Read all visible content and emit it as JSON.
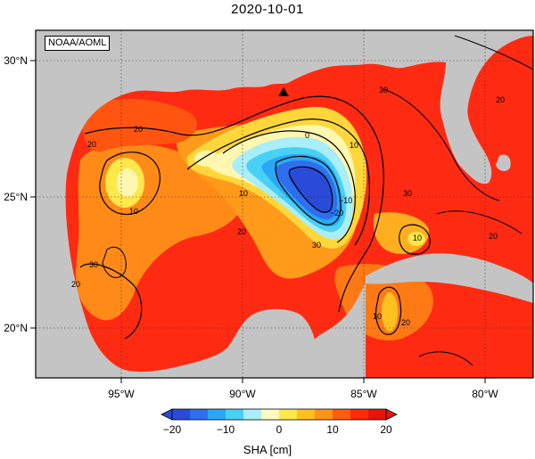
{
  "title": "2020-10-01",
  "credit": "NOAA/AOML",
  "lon_labels": [
    "95°W",
    "90°W",
    "85°W",
    "80°W"
  ],
  "lat_labels": [
    "30°N",
    "25°N",
    "20°N"
  ],
  "colorbar": {
    "ticks": [
      "−20",
      "−10",
      "0",
      "10",
      "20"
    ],
    "label": "SHA [cm]",
    "colors": [
      "#2a4bd7",
      "#2e6ff0",
      "#2aa8f5",
      "#48d1f5",
      "#a9eef8",
      "#fffbbf",
      "#ffe84a",
      "#ffc020",
      "#ff9418",
      "#ff5c10",
      "#ff2a0a",
      "#e8140a"
    ]
  },
  "contour_labels": [
    "0",
    "10",
    "20",
    "30",
    "−10",
    "−20",
    "−15"
  ],
  "colors": {
    "land": "#c4c4c4",
    "sea_bg": "#ff2a12"
  }
}
